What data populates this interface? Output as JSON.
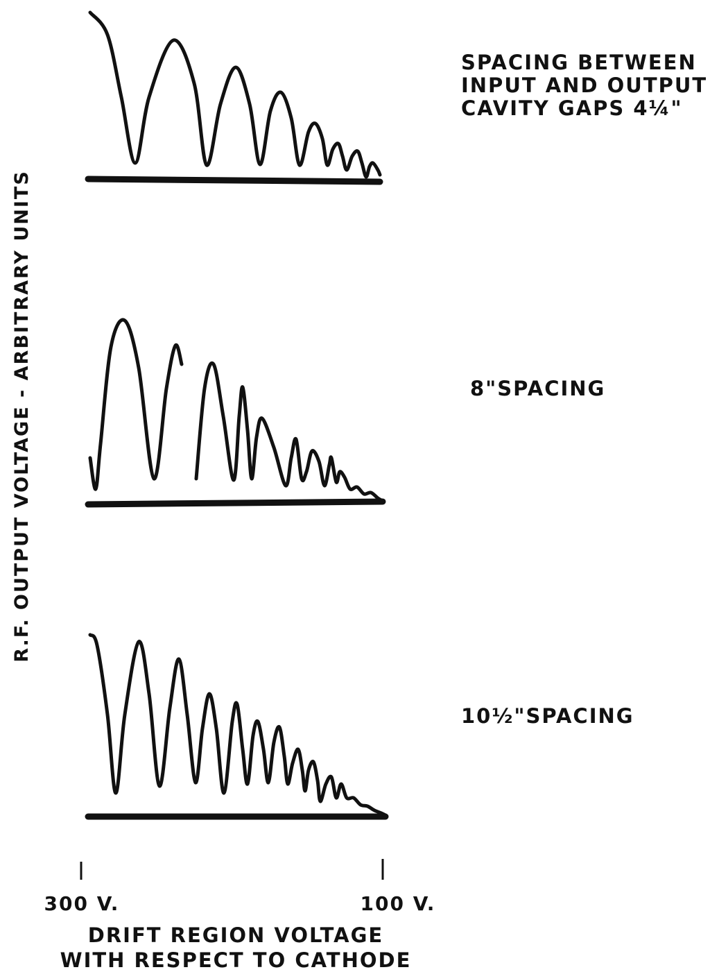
{
  "y_axis_label": "R.F. OUTPUT VOLTAGE - ARBITRARY UNITS",
  "panels": [
    {
      "label": [
        "SPACING BETWEEN",
        "INPUT AND OUTPUT",
        "CAVITY GAPS 4¼\""
      ]
    },
    {
      "label": [
        "8\"SPACING"
      ]
    },
    {
      "label": [
        "10½\"SPACING"
      ]
    }
  ],
  "x_axis": {
    "ticks": [
      "300 V.",
      "100 V."
    ],
    "title": [
      "DRIFT REGION VOLTAGE",
      "WITH RESPECT TO CATHODE"
    ]
  }
}
